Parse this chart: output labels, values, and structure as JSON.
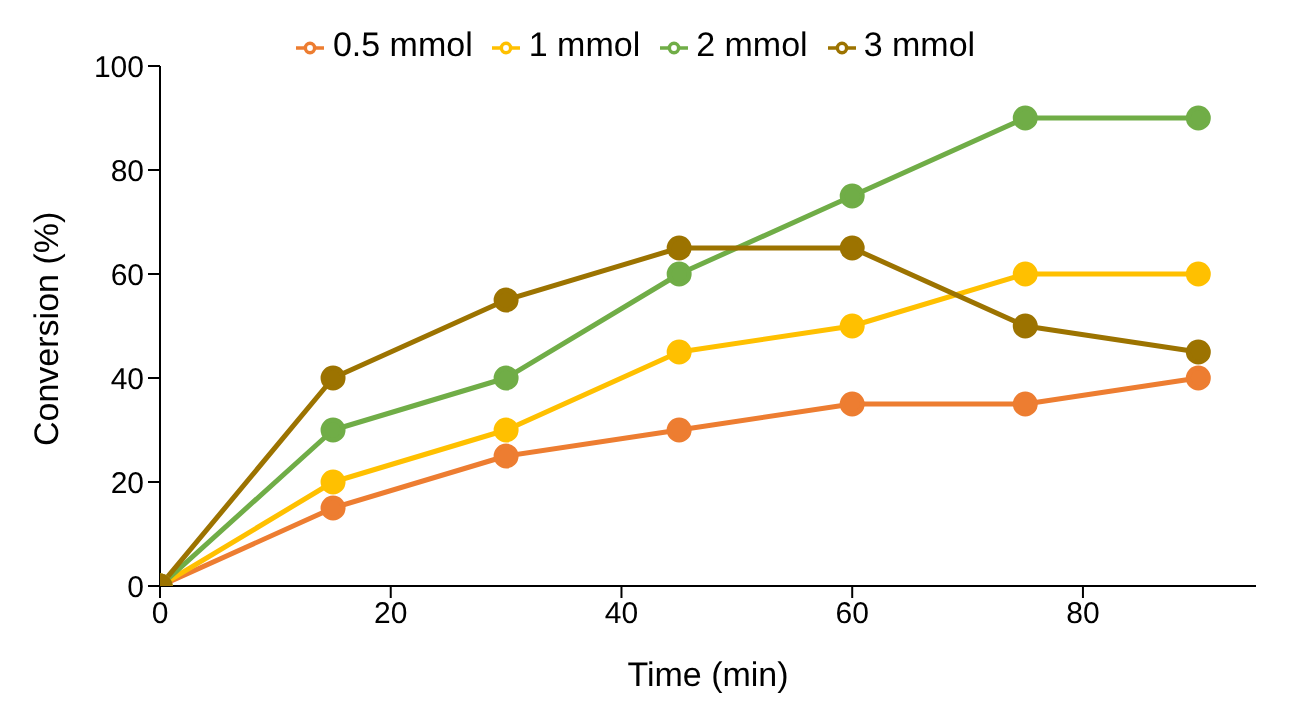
{
  "chart_data": {
    "type": "line",
    "xlabel": "Time (min)",
    "ylabel": "Conversion (%)",
    "x": [
      0,
      15,
      30,
      45,
      60,
      75,
      90
    ],
    "series": [
      {
        "name": "0.5 mmol",
        "color": "#ed7d31",
        "values": [
          0,
          15,
          25,
          30,
          35,
          35,
          40
        ]
      },
      {
        "name": "1 mmol",
        "color": "#ffc000",
        "values": [
          0,
          20,
          30,
          45,
          50,
          60,
          60
        ]
      },
      {
        "name": "2 mmol",
        "color": "#70ad47",
        "values": [
          0,
          30,
          40,
          60,
          75,
          90,
          90
        ]
      },
      {
        "name": "3 mmol",
        "color": "#9c7300",
        "values": [
          0,
          40,
          55,
          65,
          65,
          50,
          45
        ]
      }
    ],
    "xlim": [
      0,
      95
    ],
    "xticks": [
      0,
      20,
      40,
      60,
      80
    ],
    "ylim": [
      0,
      100
    ],
    "yticks": [
      0,
      20,
      40,
      60,
      80,
      100
    ],
    "grid": false,
    "legend": "top",
    "marker": "circle",
    "line_style": "solid"
  }
}
